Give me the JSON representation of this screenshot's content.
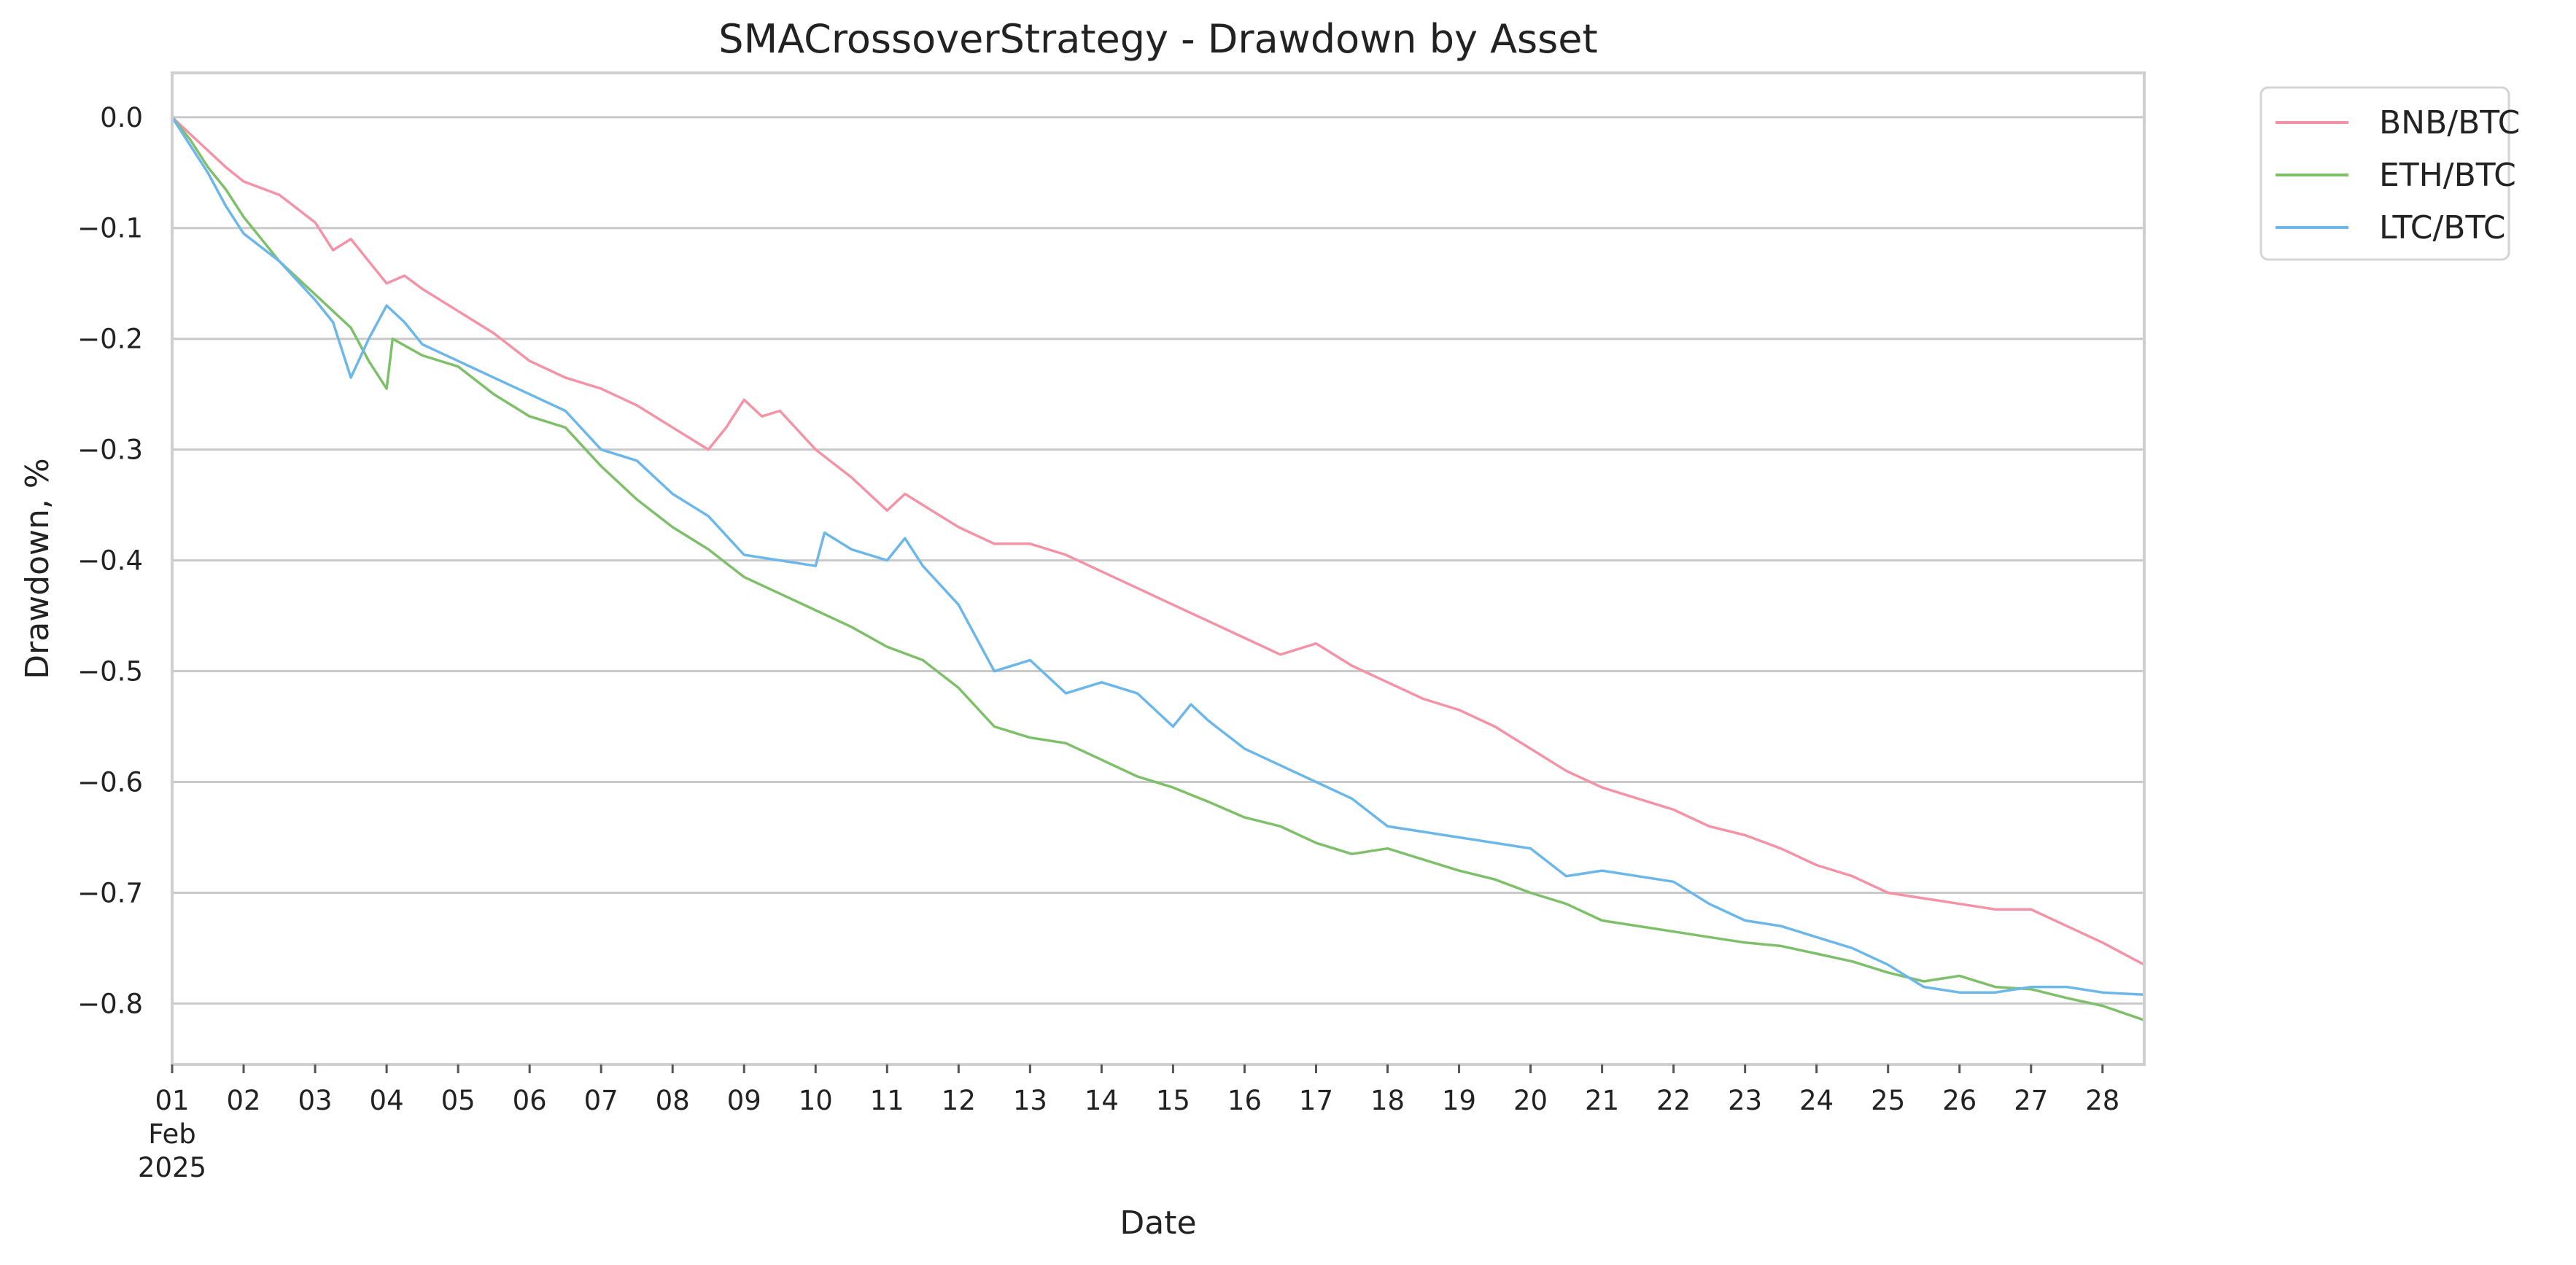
{
  "chart_data": {
    "type": "line",
    "title": "SMACrossoverStrategy - Drawdown by Asset",
    "xlabel": "Date",
    "ylabel": "Drawdown, %",
    "xlim": [
      "2025-02-01",
      "2025-02-28T14:00"
    ],
    "ylim": [
      -0.855,
      0.04
    ],
    "grid": "horizontal",
    "legend_position": "outside-top-right",
    "y_ticks": [
      {
        "value": 0.0,
        "label": "0.0"
      },
      {
        "value": -0.1,
        "label": "−0.1"
      },
      {
        "value": -0.2,
        "label": "−0.2"
      },
      {
        "value": -0.3,
        "label": "−0.3"
      },
      {
        "value": -0.4,
        "label": "−0.4"
      },
      {
        "value": -0.5,
        "label": "−0.5"
      },
      {
        "value": -0.6,
        "label": "−0.6"
      },
      {
        "value": -0.7,
        "label": "−0.7"
      },
      {
        "value": -0.8,
        "label": "−0.8"
      }
    ],
    "x_ticks": [
      {
        "date": "2025-02-01",
        "label": "01",
        "sublabel": "Feb",
        "sublabel2": "2025"
      },
      {
        "date": "2025-02-02",
        "label": "02"
      },
      {
        "date": "2025-02-03",
        "label": "03"
      },
      {
        "date": "2025-02-04",
        "label": "04"
      },
      {
        "date": "2025-02-05",
        "label": "05"
      },
      {
        "date": "2025-02-06",
        "label": "06"
      },
      {
        "date": "2025-02-07",
        "label": "07"
      },
      {
        "date": "2025-02-08",
        "label": "08"
      },
      {
        "date": "2025-02-09",
        "label": "09"
      },
      {
        "date": "2025-02-10",
        "label": "10"
      },
      {
        "date": "2025-02-11",
        "label": "11"
      },
      {
        "date": "2025-02-12",
        "label": "12"
      },
      {
        "date": "2025-02-13",
        "label": "13"
      },
      {
        "date": "2025-02-14",
        "label": "14"
      },
      {
        "date": "2025-02-15",
        "label": "15"
      },
      {
        "date": "2025-02-16",
        "label": "16"
      },
      {
        "date": "2025-02-17",
        "label": "17"
      },
      {
        "date": "2025-02-18",
        "label": "18"
      },
      {
        "date": "2025-02-19",
        "label": "19"
      },
      {
        "date": "2025-02-20",
        "label": "20"
      },
      {
        "date": "2025-02-21",
        "label": "21"
      },
      {
        "date": "2025-02-22",
        "label": "22"
      },
      {
        "date": "2025-02-23",
        "label": "23"
      },
      {
        "date": "2025-02-24",
        "label": "24"
      },
      {
        "date": "2025-02-25",
        "label": "25"
      },
      {
        "date": "2025-02-26",
        "label": "26"
      },
      {
        "date": "2025-02-27",
        "label": "27"
      },
      {
        "date": "2025-02-28",
        "label": "28"
      }
    ],
    "series": [
      {
        "name": "BNB/BTC",
        "color": "#f593a6",
        "points": [
          [
            "2025-02-01T00:00",
            0.0
          ],
          [
            "2025-02-01T06:00",
            -0.015
          ],
          [
            "2025-02-01T12:00",
            -0.03
          ],
          [
            "2025-02-01T18:00",
            -0.045
          ],
          [
            "2025-02-02T00:00",
            -0.058
          ],
          [
            "2025-02-02T12:00",
            -0.07
          ],
          [
            "2025-02-03T00:00",
            -0.095
          ],
          [
            "2025-02-03T06:00",
            -0.12
          ],
          [
            "2025-02-03T12:00",
            -0.11
          ],
          [
            "2025-02-03T18:00",
            -0.13
          ],
          [
            "2025-02-04T00:00",
            -0.15
          ],
          [
            "2025-02-04T06:00",
            -0.143
          ],
          [
            "2025-02-04T12:00",
            -0.155
          ],
          [
            "2025-02-05T00:00",
            -0.175
          ],
          [
            "2025-02-05T12:00",
            -0.195
          ],
          [
            "2025-02-06T00:00",
            -0.22
          ],
          [
            "2025-02-06T12:00",
            -0.235
          ],
          [
            "2025-02-07T00:00",
            -0.245
          ],
          [
            "2025-02-07T12:00",
            -0.26
          ],
          [
            "2025-02-08T00:00",
            -0.28
          ],
          [
            "2025-02-08T12:00",
            -0.3
          ],
          [
            "2025-02-08T18:00",
            -0.28
          ],
          [
            "2025-02-09T00:00",
            -0.255
          ],
          [
            "2025-02-09T06:00",
            -0.27
          ],
          [
            "2025-02-09T12:00",
            -0.265
          ],
          [
            "2025-02-10T00:00",
            -0.3
          ],
          [
            "2025-02-10T12:00",
            -0.325
          ],
          [
            "2025-02-11T00:00",
            -0.355
          ],
          [
            "2025-02-11T06:00",
            -0.34
          ],
          [
            "2025-02-11T12:00",
            -0.35
          ],
          [
            "2025-02-12T00:00",
            -0.37
          ],
          [
            "2025-02-12T12:00",
            -0.385
          ],
          [
            "2025-02-13T00:00",
            -0.385
          ],
          [
            "2025-02-13T12:00",
            -0.395
          ],
          [
            "2025-02-14T00:00",
            -0.41
          ],
          [
            "2025-02-14T12:00",
            -0.425
          ],
          [
            "2025-02-15T00:00",
            -0.44
          ],
          [
            "2025-02-15T12:00",
            -0.455
          ],
          [
            "2025-02-16T00:00",
            -0.47
          ],
          [
            "2025-02-16T12:00",
            -0.485
          ],
          [
            "2025-02-17T00:00",
            -0.475
          ],
          [
            "2025-02-17T12:00",
            -0.495
          ],
          [
            "2025-02-18T00:00",
            -0.51
          ],
          [
            "2025-02-18T12:00",
            -0.525
          ],
          [
            "2025-02-19T00:00",
            -0.535
          ],
          [
            "2025-02-19T12:00",
            -0.55
          ],
          [
            "2025-02-20T00:00",
            -0.57
          ],
          [
            "2025-02-20T12:00",
            -0.59
          ],
          [
            "2025-02-21T00:00",
            -0.605
          ],
          [
            "2025-02-21T12:00",
            -0.615
          ],
          [
            "2025-02-22T00:00",
            -0.625
          ],
          [
            "2025-02-22T12:00",
            -0.64
          ],
          [
            "2025-02-23T00:00",
            -0.648
          ],
          [
            "2025-02-23T12:00",
            -0.66
          ],
          [
            "2025-02-24T00:00",
            -0.675
          ],
          [
            "2025-02-24T12:00",
            -0.685
          ],
          [
            "2025-02-25T00:00",
            -0.7
          ],
          [
            "2025-02-25T12:00",
            -0.705
          ],
          [
            "2025-02-26T00:00",
            -0.71
          ],
          [
            "2025-02-26T12:00",
            -0.715
          ],
          [
            "2025-02-27T00:00",
            -0.715
          ],
          [
            "2025-02-27T12:00",
            -0.73
          ],
          [
            "2025-02-28T00:00",
            -0.745
          ],
          [
            "2025-02-28T14:00",
            -0.765
          ]
        ]
      },
      {
        "name": "ETH/BTC",
        "color": "#7ec06a",
        "points": [
          [
            "2025-02-01T00:00",
            0.0
          ],
          [
            "2025-02-01T06:00",
            -0.02
          ],
          [
            "2025-02-01T12:00",
            -0.045
          ],
          [
            "2025-02-01T18:00",
            -0.065
          ],
          [
            "2025-02-02T00:00",
            -0.09
          ],
          [
            "2025-02-02T12:00",
            -0.13
          ],
          [
            "2025-02-03T00:00",
            -0.16
          ],
          [
            "2025-02-03T06:00",
            -0.175
          ],
          [
            "2025-02-03T12:00",
            -0.19
          ],
          [
            "2025-02-03T18:00",
            -0.22
          ],
          [
            "2025-02-04T00:00",
            -0.245
          ],
          [
            "2025-02-04T02:00",
            -0.2
          ],
          [
            "2025-02-04T12:00",
            -0.215
          ],
          [
            "2025-02-05T00:00",
            -0.225
          ],
          [
            "2025-02-05T12:00",
            -0.25
          ],
          [
            "2025-02-06T00:00",
            -0.27
          ],
          [
            "2025-02-06T12:00",
            -0.28
          ],
          [
            "2025-02-07T00:00",
            -0.315
          ],
          [
            "2025-02-07T12:00",
            -0.345
          ],
          [
            "2025-02-08T00:00",
            -0.37
          ],
          [
            "2025-02-08T12:00",
            -0.39
          ],
          [
            "2025-02-09T00:00",
            -0.415
          ],
          [
            "2025-02-09T12:00",
            -0.43
          ],
          [
            "2025-02-10T00:00",
            -0.445
          ],
          [
            "2025-02-10T12:00",
            -0.46
          ],
          [
            "2025-02-11T00:00",
            -0.478
          ],
          [
            "2025-02-11T12:00",
            -0.49
          ],
          [
            "2025-02-12T00:00",
            -0.515
          ],
          [
            "2025-02-12T12:00",
            -0.55
          ],
          [
            "2025-02-13T00:00",
            -0.56
          ],
          [
            "2025-02-13T12:00",
            -0.565
          ],
          [
            "2025-02-14T00:00",
            -0.58
          ],
          [
            "2025-02-14T12:00",
            -0.595
          ],
          [
            "2025-02-15T00:00",
            -0.605
          ],
          [
            "2025-02-15T12:00",
            -0.618
          ],
          [
            "2025-02-16T00:00",
            -0.632
          ],
          [
            "2025-02-16T12:00",
            -0.64
          ],
          [
            "2025-02-17T00:00",
            -0.655
          ],
          [
            "2025-02-17T12:00",
            -0.665
          ],
          [
            "2025-02-18T00:00",
            -0.66
          ],
          [
            "2025-02-18T12:00",
            -0.67
          ],
          [
            "2025-02-19T00:00",
            -0.68
          ],
          [
            "2025-02-19T12:00",
            -0.688
          ],
          [
            "2025-02-20T00:00",
            -0.7
          ],
          [
            "2025-02-20T12:00",
            -0.71
          ],
          [
            "2025-02-21T00:00",
            -0.725
          ],
          [
            "2025-02-21T12:00",
            -0.73
          ],
          [
            "2025-02-22T00:00",
            -0.735
          ],
          [
            "2025-02-22T12:00",
            -0.74
          ],
          [
            "2025-02-23T00:00",
            -0.745
          ],
          [
            "2025-02-23T12:00",
            -0.748
          ],
          [
            "2025-02-24T00:00",
            -0.755
          ],
          [
            "2025-02-24T12:00",
            -0.762
          ],
          [
            "2025-02-25T00:00",
            -0.772
          ],
          [
            "2025-02-25T12:00",
            -0.78
          ],
          [
            "2025-02-26T00:00",
            -0.775
          ],
          [
            "2025-02-26T12:00",
            -0.785
          ],
          [
            "2025-02-27T00:00",
            -0.787
          ],
          [
            "2025-02-27T12:00",
            -0.795
          ],
          [
            "2025-02-28T00:00",
            -0.802
          ],
          [
            "2025-02-28T14:00",
            -0.815
          ]
        ]
      },
      {
        "name": "LTC/BTC",
        "color": "#6cb7ea",
        "points": [
          [
            "2025-02-01T00:00",
            0.0
          ],
          [
            "2025-02-01T06:00",
            -0.025
          ],
          [
            "2025-02-01T12:00",
            -0.05
          ],
          [
            "2025-02-01T18:00",
            -0.08
          ],
          [
            "2025-02-02T00:00",
            -0.105
          ],
          [
            "2025-02-02T12:00",
            -0.13
          ],
          [
            "2025-02-03T00:00",
            -0.165
          ],
          [
            "2025-02-03T06:00",
            -0.185
          ],
          [
            "2025-02-03T12:00",
            -0.235
          ],
          [
            "2025-02-03T18:00",
            -0.2
          ],
          [
            "2025-02-04T00:00",
            -0.17
          ],
          [
            "2025-02-04T06:00",
            -0.185
          ],
          [
            "2025-02-04T12:00",
            -0.205
          ],
          [
            "2025-02-05T00:00",
            -0.22
          ],
          [
            "2025-02-05T12:00",
            -0.235
          ],
          [
            "2025-02-06T00:00",
            -0.25
          ],
          [
            "2025-02-06T12:00",
            -0.265
          ],
          [
            "2025-02-07T00:00",
            -0.3
          ],
          [
            "2025-02-07T12:00",
            -0.31
          ],
          [
            "2025-02-08T00:00",
            -0.34
          ],
          [
            "2025-02-08T12:00",
            -0.36
          ],
          [
            "2025-02-09T00:00",
            -0.395
          ],
          [
            "2025-02-09T12:00",
            -0.4
          ],
          [
            "2025-02-10T00:00",
            -0.405
          ],
          [
            "2025-02-10T03:00",
            -0.375
          ],
          [
            "2025-02-10T12:00",
            -0.39
          ],
          [
            "2025-02-11T00:00",
            -0.4
          ],
          [
            "2025-02-11T06:00",
            -0.38
          ],
          [
            "2025-02-11T12:00",
            -0.405
          ],
          [
            "2025-02-12T00:00",
            -0.44
          ],
          [
            "2025-02-12T12:00",
            -0.5
          ],
          [
            "2025-02-13T00:00",
            -0.49
          ],
          [
            "2025-02-13T12:00",
            -0.52
          ],
          [
            "2025-02-14T00:00",
            -0.51
          ],
          [
            "2025-02-14T12:00",
            -0.52
          ],
          [
            "2025-02-15T00:00",
            -0.55
          ],
          [
            "2025-02-15T06:00",
            -0.53
          ],
          [
            "2025-02-15T12:00",
            -0.545
          ],
          [
            "2025-02-16T00:00",
            -0.57
          ],
          [
            "2025-02-16T12:00",
            -0.585
          ],
          [
            "2025-02-17T00:00",
            -0.6
          ],
          [
            "2025-02-17T12:00",
            -0.615
          ],
          [
            "2025-02-18T00:00",
            -0.64
          ],
          [
            "2025-02-18T12:00",
            -0.645
          ],
          [
            "2025-02-19T00:00",
            -0.65
          ],
          [
            "2025-02-19T12:00",
            -0.655
          ],
          [
            "2025-02-20T00:00",
            -0.66
          ],
          [
            "2025-02-20T12:00",
            -0.685
          ],
          [
            "2025-02-21T00:00",
            -0.68
          ],
          [
            "2025-02-21T12:00",
            -0.685
          ],
          [
            "2025-02-22T00:00",
            -0.69
          ],
          [
            "2025-02-22T12:00",
            -0.71
          ],
          [
            "2025-02-23T00:00",
            -0.725
          ],
          [
            "2025-02-23T12:00",
            -0.73
          ],
          [
            "2025-02-24T00:00",
            -0.74
          ],
          [
            "2025-02-24T12:00",
            -0.75
          ],
          [
            "2025-02-25T00:00",
            -0.765
          ],
          [
            "2025-02-25T12:00",
            -0.785
          ],
          [
            "2025-02-26T00:00",
            -0.79
          ],
          [
            "2025-02-26T12:00",
            -0.79
          ],
          [
            "2025-02-27T00:00",
            -0.785
          ],
          [
            "2025-02-27T12:00",
            -0.785
          ],
          [
            "2025-02-28T00:00",
            -0.79
          ],
          [
            "2025-02-28T14:00",
            -0.792
          ]
        ]
      }
    ]
  }
}
